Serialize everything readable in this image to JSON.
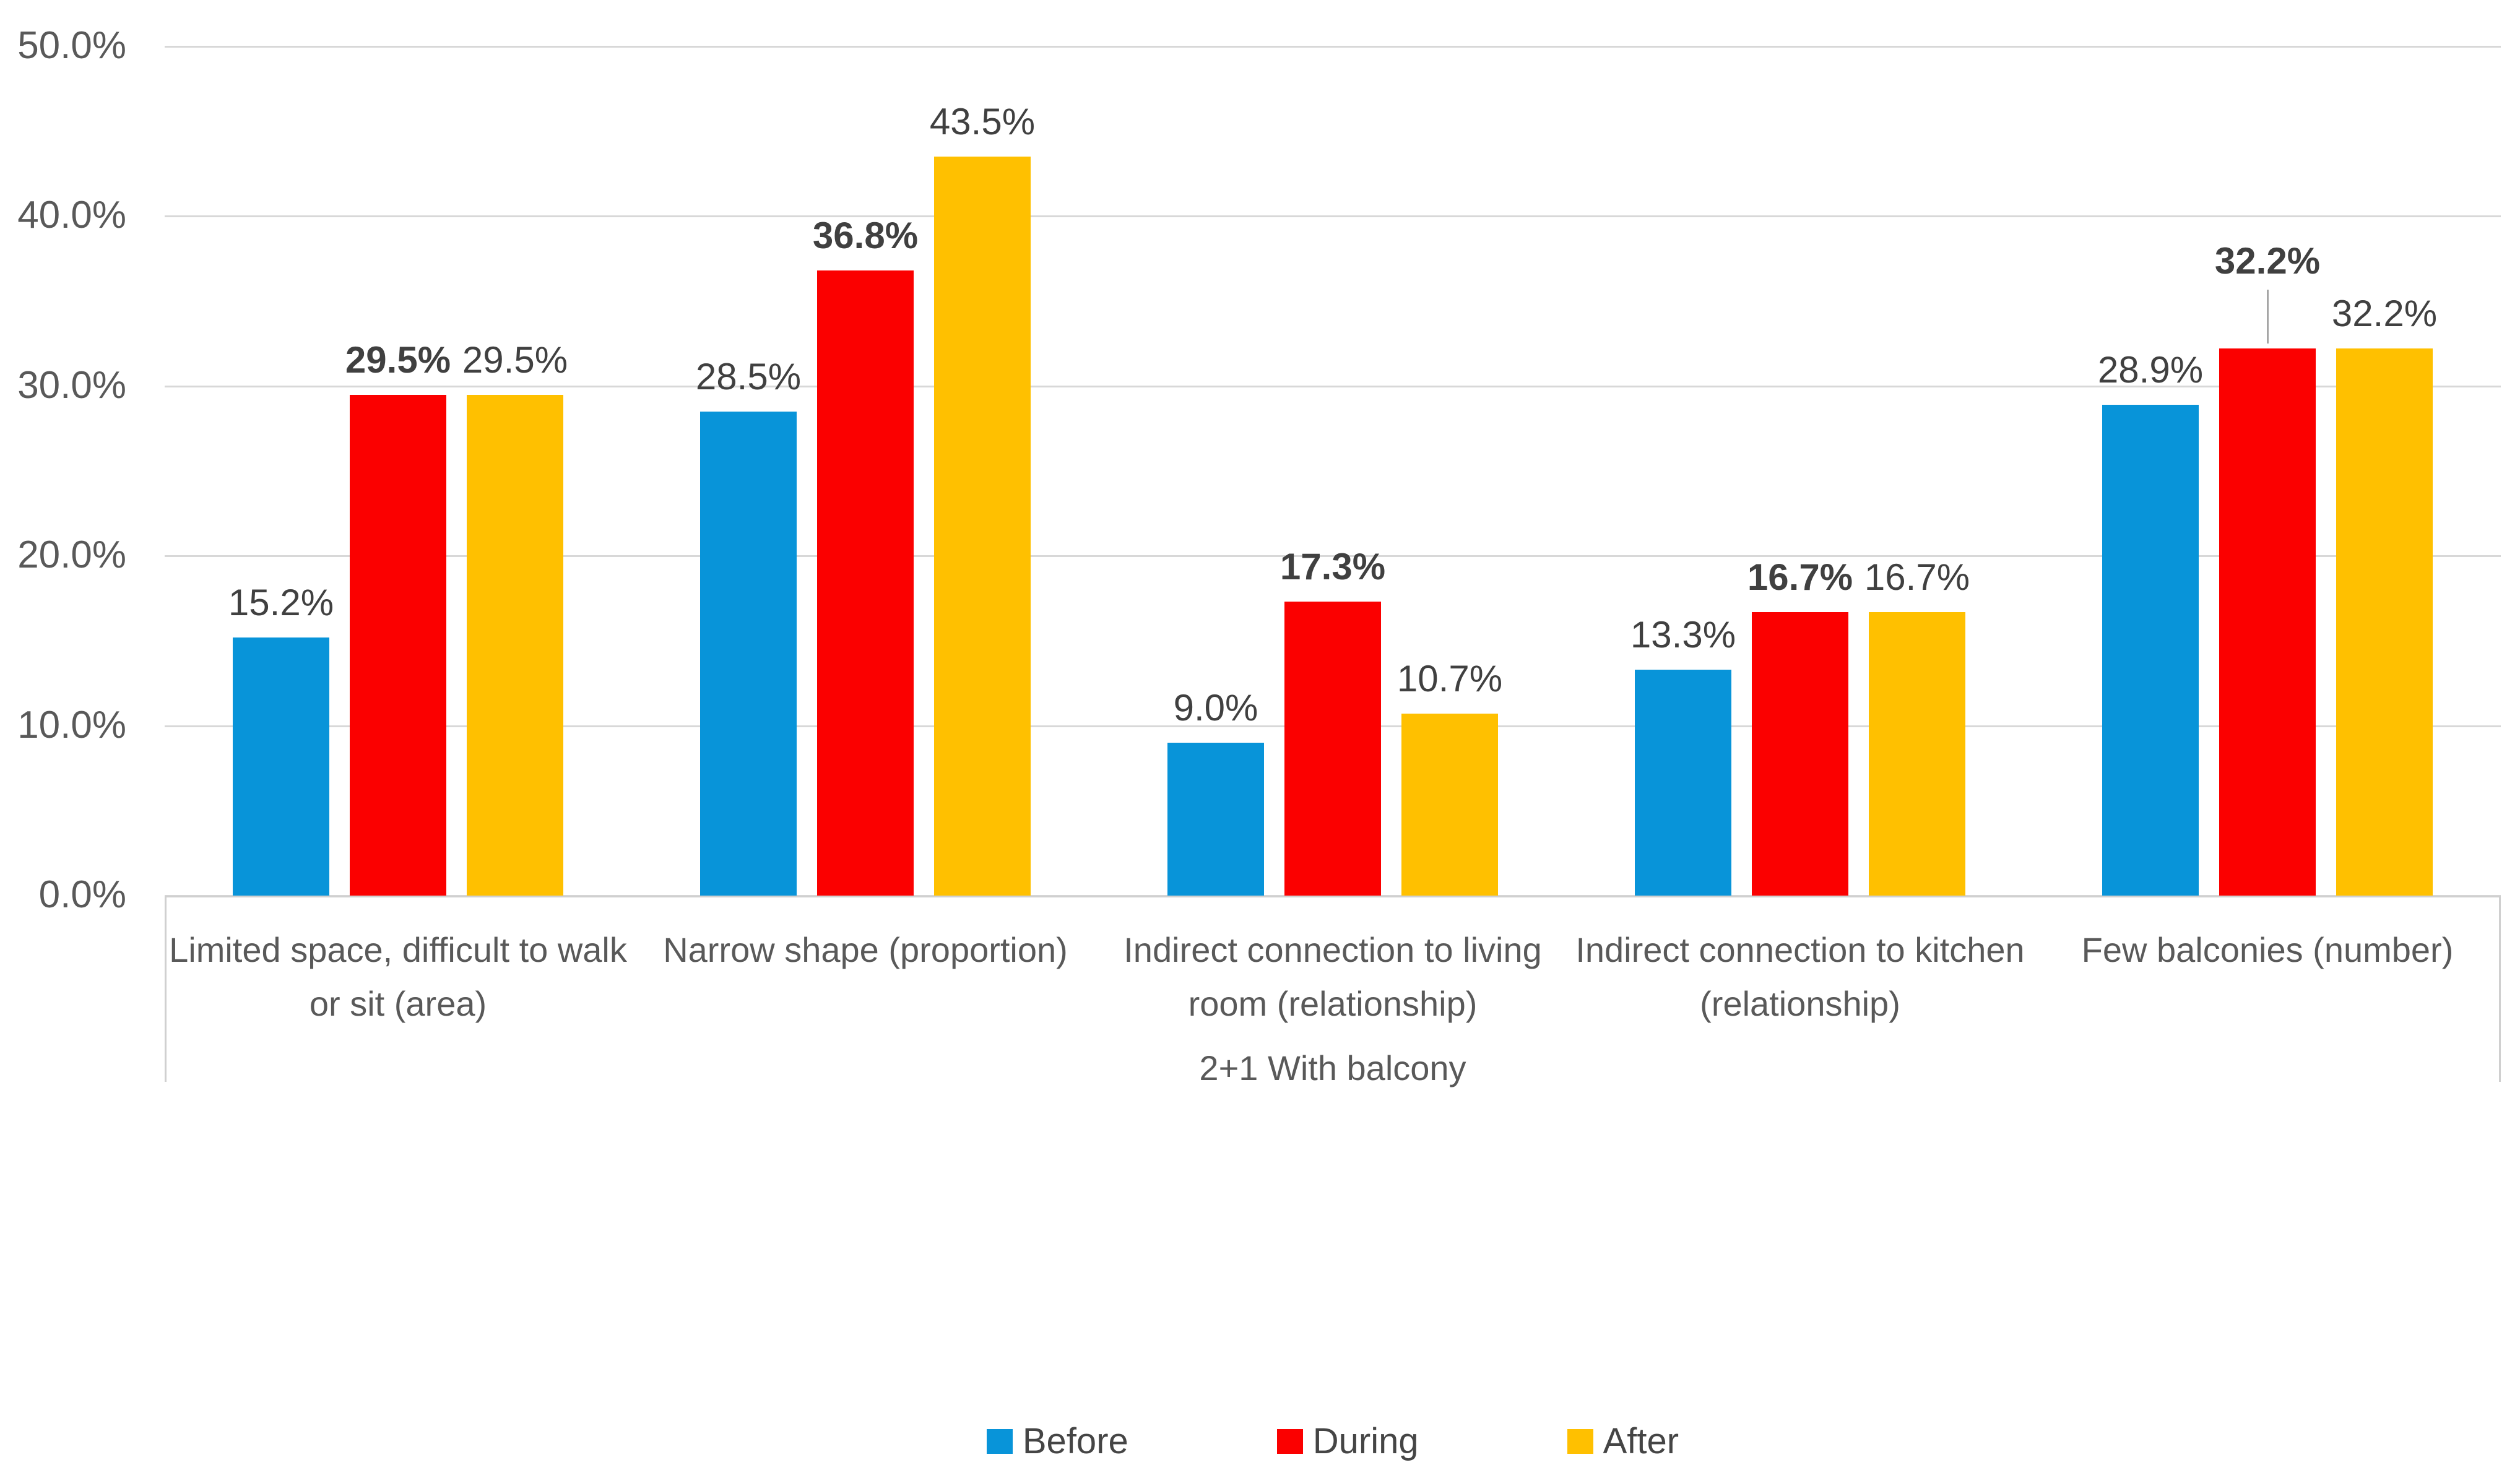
{
  "chart_data": {
    "type": "bar",
    "title": "",
    "categories": [
      "Limited space, difficult to walk or sit (area)",
      "Narrow shape (proportion)",
      "Indirect connection to living room (relationship)",
      "Indirect connection to kitchen (relationship)",
      "Few balconies (number)"
    ],
    "group_label": "2+1 With balcony",
    "series": [
      {
        "name": "Before",
        "color": "#0894D9",
        "values": [
          15.2,
          28.5,
          9.0,
          13.3,
          28.9
        ],
        "bold_labels": false,
        "label_raise": [
          0,
          0,
          0,
          0,
          0
        ]
      },
      {
        "name": "During",
        "color": "#FB0000",
        "values": [
          29.5,
          36.8,
          17.3,
          16.7,
          32.2
        ],
        "bold_labels": true,
        "label_raise": [
          0,
          0,
          0,
          0,
          85
        ]
      },
      {
        "name": "After",
        "color": "#FFC000",
        "values": [
          29.5,
          43.5,
          10.7,
          16.7,
          32.2
        ],
        "bold_labels": false,
        "label_raise": [
          0,
          0,
          0,
          0,
          0
        ]
      }
    ],
    "ylim": [
      0,
      50
    ],
    "ytick_labels": [
      "0.0%",
      "10.0%",
      "20.0%",
      "30.0%",
      "40.0%",
      "50.0%"
    ],
    "data_label_suffix": "%",
    "grid": true,
    "legend_position": "bottom",
    "legend": [
      "Before",
      "During",
      "After"
    ]
  },
  "styles": {
    "background": "#ffffff",
    "grid_color": "#d8d8d8",
    "axis_color": "#d0d0d0",
    "ytick_color": "#595959",
    "data_label_color": "#404040",
    "category_color": "#595959",
    "legend_text_color": "#454545",
    "leader_color": "#a6a6a6"
  }
}
